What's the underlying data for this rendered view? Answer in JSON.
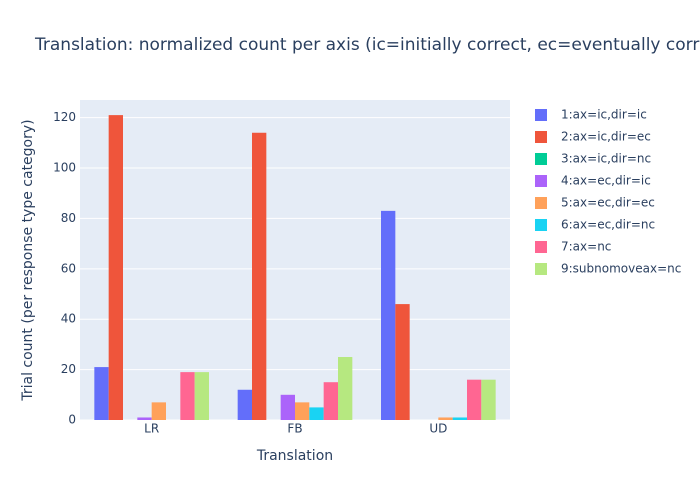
{
  "chart_data": {
    "type": "bar",
    "title": "Translation: normalized count per axis (ic=initially correct, ec=eventually corr",
    "x_label": "Translation",
    "y_label": "Trial count (per response type category)",
    "categories": [
      "LR",
      "FB",
      "UD"
    ],
    "series": [
      {
        "name": "1:ax=ic,dir=ic",
        "color": "#636efa",
        "values": [
          21,
          12,
          83
        ]
      },
      {
        "name": "2:ax=ic,dir=ec",
        "color": "#ef553b",
        "values": [
          121,
          114,
          46
        ]
      },
      {
        "name": "3:ax=ic,dir=nc",
        "color": "#00cc96",
        "values": [
          0,
          0,
          0
        ]
      },
      {
        "name": "4:ax=ec,dir=ic",
        "color": "#ab63fa",
        "values": [
          1,
          10,
          0
        ]
      },
      {
        "name": "5:ax=ec,dir=ec",
        "color": "#ffa15a",
        "values": [
          7,
          7,
          1
        ]
      },
      {
        "name": "6:ax=ec,dir=nc",
        "color": "#19d3f3",
        "values": [
          0,
          5,
          1
        ]
      },
      {
        "name": "7:ax=nc",
        "color": "#ff6692",
        "values": [
          19,
          15,
          16
        ]
      },
      {
        "name": "9:subnomoveax=nc",
        "color": "#b6e880",
        "values": [
          19,
          25,
          16
        ]
      }
    ],
    "ylim": [
      0,
      127
    ],
    "yticks": [
      0,
      20,
      40,
      60,
      80,
      100,
      120
    ],
    "grid": true,
    "legend": "right"
  }
}
